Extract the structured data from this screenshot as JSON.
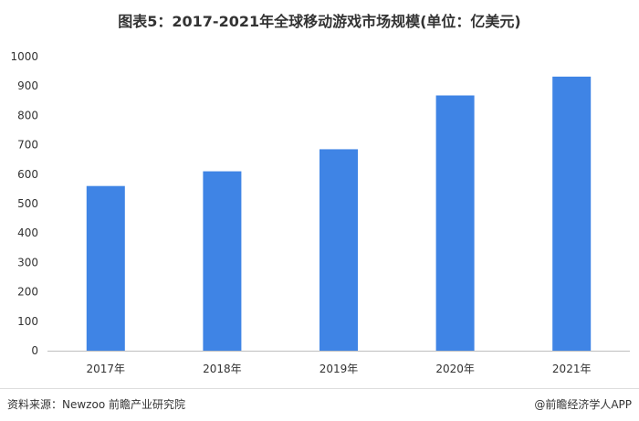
{
  "chart_data": {
    "type": "bar",
    "title": "图表5：2017-2021年全球移动游戏市场规模(单位：亿美元)",
    "categories": [
      "2017年",
      "2018年",
      "2019年",
      "2020年",
      "2021年"
    ],
    "values": [
      560,
      610,
      685,
      868,
      932
    ],
    "ylim": [
      0,
      1000
    ],
    "yticks": [
      0,
      100,
      200,
      300,
      400,
      500,
      600,
      700,
      800,
      900,
      1000
    ],
    "xlabel": "",
    "ylabel": "",
    "grid": false,
    "bar_color": "#3f84e5",
    "axis_color": "#bfbfbf"
  },
  "footer": {
    "source": "资料来源：Newzoo 前瞻产业研究院",
    "brand": "@前瞻经济学人APP"
  }
}
